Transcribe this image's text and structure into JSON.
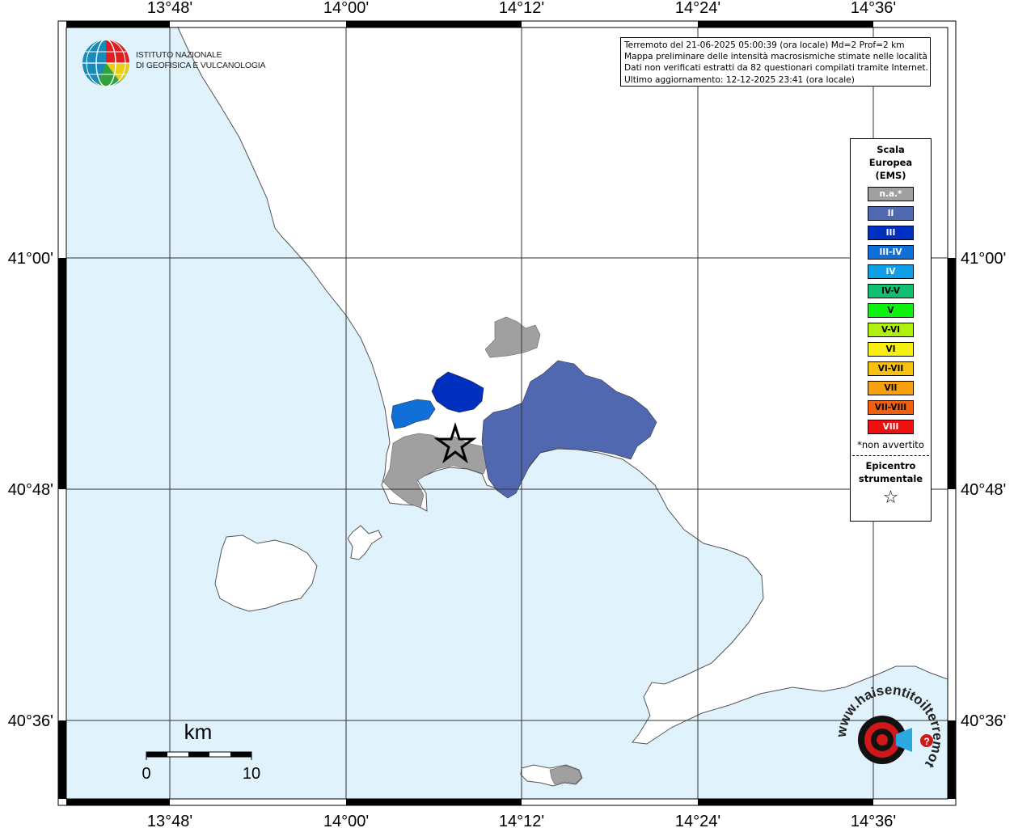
{
  "info": {
    "line1": "Terremoto del 21-06-2025 05:00:39 (ora locale) Md=2 Prof=2 km",
    "line2": "Mappa preliminare delle intensità macrosismiche stimate nelle località",
    "line3": "Dati non verificati estratti da 82 questionari compilati tramite Internet.",
    "line4": "Ultimo aggiornamento: 12-12-2025 23:41 (ora locale)"
  },
  "logo": {
    "org_line1": "ISTITUTO NAZIONALE",
    "org_line2": "DI GEOFISICA E VULCANOLOGIA",
    "watermark": "www.haisentitoilterremoto.it"
  },
  "axes": {
    "lon_labels": [
      "13°48'",
      "14°00'",
      "14°12'",
      "14°24'",
      "14°36'"
    ],
    "lat_labels": [
      "41°00'",
      "40°48'",
      "40°36'"
    ]
  },
  "scalebar": {
    "unit": "km",
    "min": "0",
    "max": "10"
  },
  "legend": {
    "title_line1": "Scala",
    "title_line2": "Europea",
    "title_line3": "(EMS)",
    "items": [
      {
        "label": "n.a.*",
        "color": "#a0a0a0",
        "text_color": "#ffffff"
      },
      {
        "label": "II",
        "color": "#5068b0",
        "text_color": "#ffffff"
      },
      {
        "label": "III",
        "color": "#0030c0",
        "text_color": "#ffffff"
      },
      {
        "label": "III-IV",
        "color": "#1070d8",
        "text_color": "#ffffff"
      },
      {
        "label": "IV",
        "color": "#10a0e8",
        "text_color": "#ffffff"
      },
      {
        "label": "IV-V",
        "color": "#10c070",
        "text_color": "#000000"
      },
      {
        "label": "V",
        "color": "#10f010",
        "text_color": "#000000"
      },
      {
        "label": "V-VI",
        "color": "#b0f010",
        "text_color": "#000000"
      },
      {
        "label": "VI",
        "color": "#f8f010",
        "text_color": "#000000"
      },
      {
        "label": "VI-VII",
        "color": "#f8c010",
        "text_color": "#000000"
      },
      {
        "label": "VII",
        "color": "#f8a010",
        "text_color": "#000000"
      },
      {
        "label": "VII-VIII",
        "color": "#f06010",
        "text_color": "#000000"
      },
      {
        "label": "VIII",
        "color": "#f01010",
        "text_color": "#ffffff"
      }
    ],
    "note": "*non avvertito",
    "epicenter_line1": "Epicentro",
    "epicenter_line2": "strumentale",
    "epicenter_symbol": "☆"
  },
  "colors": {
    "sea": "#e0f2fc",
    "land": "#ffffff",
    "grey_zone": "#a0a0a0",
    "intensity_II": "#5068b0",
    "intensity_III": "#0030c0",
    "intensity_III_IV": "#1070d8"
  }
}
